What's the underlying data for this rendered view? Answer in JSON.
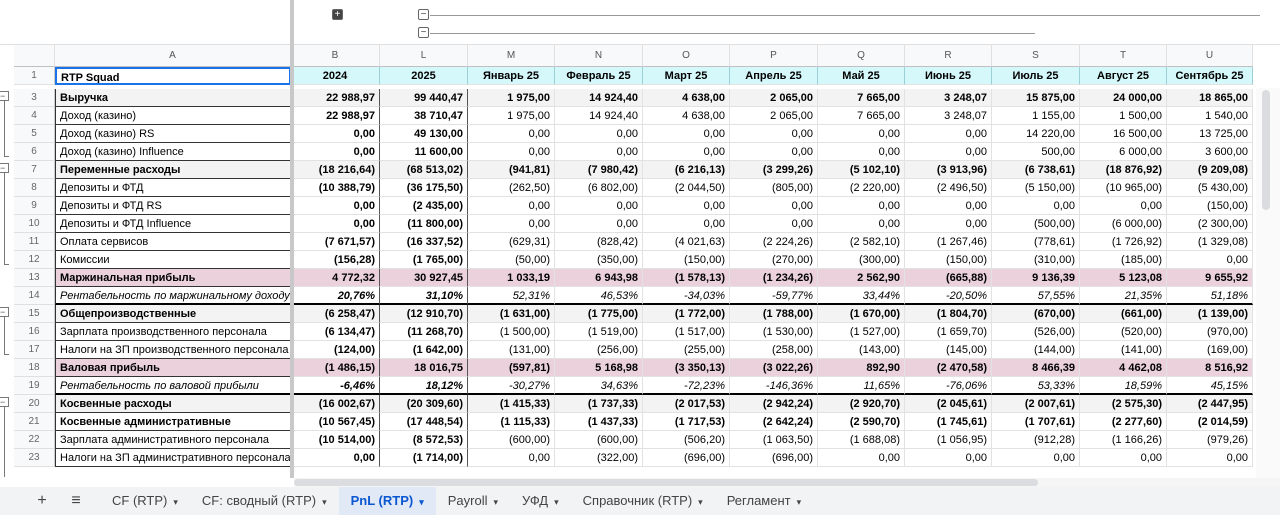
{
  "columns": [
    "A",
    "B",
    "L",
    "M",
    "N",
    "O",
    "P",
    "Q",
    "R",
    "S",
    "T",
    "U"
  ],
  "header_row": {
    "n": "1",
    "label": "RTP Squad",
    "values": [
      "2024",
      "2025",
      "Январь 25",
      "Февраль 25",
      "Март 25",
      "Апрель 25",
      "Май 25",
      "Июнь 25",
      "Июль 25",
      "Август 25",
      "Сентябрь 25"
    ]
  },
  "rows": [
    {
      "n": "3",
      "label": "Выручка",
      "style": "bold grey",
      "values": [
        "22 988,97",
        "99 440,47",
        "1 975,00",
        "14 924,40",
        "4 638,00",
        "2 065,00",
        "7 665,00",
        "3 248,07",
        "15 875,00",
        "24 000,00",
        "18 865,00"
      ]
    },
    {
      "n": "4",
      "label": "Доход (казино)",
      "style": "",
      "values": [
        "22 988,97",
        "38 710,47",
        "1 975,00",
        "14 924,40",
        "4 638,00",
        "2 065,00",
        "7 665,00",
        "3 248,07",
        "1 155,00",
        "1 500,00",
        "1 540,00"
      ]
    },
    {
      "n": "5",
      "label": "Доход (казино) RS",
      "style": "",
      "values": [
        "0,00",
        "49 130,00",
        "0,00",
        "0,00",
        "0,00",
        "0,00",
        "0,00",
        "0,00",
        "14 220,00",
        "16 500,00",
        "13 725,00"
      ]
    },
    {
      "n": "6",
      "label": "Доход (казино) Influence",
      "style": "",
      "values": [
        "0,00",
        "11 600,00",
        "0,00",
        "0,00",
        "0,00",
        "0,00",
        "0,00",
        "0,00",
        "500,00",
        "6 000,00",
        "3 600,00"
      ]
    },
    {
      "n": "7",
      "label": "Переменные расходы",
      "style": "bold grey",
      "values": [
        "(18 216,64)",
        "(68 513,02)",
        "(941,81)",
        "(7 980,42)",
        "(6 216,13)",
        "(3 299,26)",
        "(5 102,10)",
        "(3 913,96)",
        "(6 738,61)",
        "(18 876,92)",
        "(9 209,08)"
      ]
    },
    {
      "n": "8",
      "label": "Депозиты и ФТД",
      "style": "",
      "values": [
        "(10 388,79)",
        "(36 175,50)",
        "(262,50)",
        "(6 802,00)",
        "(2 044,50)",
        "(805,00)",
        "(2 220,00)",
        "(2 496,50)",
        "(5 150,00)",
        "(10 965,00)",
        "(5 430,00)"
      ]
    },
    {
      "n": "9",
      "label": "Депозиты и ФТД RS",
      "style": "",
      "values": [
        "0,00",
        "(2 435,00)",
        "0,00",
        "0,00",
        "0,00",
        "0,00",
        "0,00",
        "0,00",
        "0,00",
        "0,00",
        "(150,00)"
      ]
    },
    {
      "n": "10",
      "label": "Депозиты и ФТД Influence",
      "style": "",
      "values": [
        "0,00",
        "(11 800,00)",
        "0,00",
        "0,00",
        "0,00",
        "0,00",
        "0,00",
        "0,00",
        "(500,00)",
        "(6 000,00)",
        "(2 300,00)"
      ]
    },
    {
      "n": "11",
      "label": "Оплата сервисов",
      "style": "",
      "values": [
        "(7 671,57)",
        "(16 337,52)",
        "(629,31)",
        "(828,42)",
        "(4 021,63)",
        "(2 224,26)",
        "(2 582,10)",
        "(1 267,46)",
        "(778,61)",
        "(1 726,92)",
        "(1 329,08)"
      ]
    },
    {
      "n": "12",
      "label": "Комиссии",
      "style": "",
      "values": [
        "(156,28)",
        "(1 765,00)",
        "(50,00)",
        "(350,00)",
        "(150,00)",
        "(270,00)",
        "(300,00)",
        "(150,00)",
        "(310,00)",
        "(185,00)",
        "0,00"
      ]
    },
    {
      "n": "13",
      "label": "Маржинальная прибыль",
      "style": "bold pink",
      "values": [
        "4 772,32",
        "30 927,45",
        "1 033,19",
        "6 943,98",
        "(1 578,13)",
        "(1 234,26)",
        "2 562,90",
        "(665,88)",
        "9 136,39",
        "5 123,08",
        "9 655,92"
      ]
    },
    {
      "n": "14",
      "label": "Рентабельность по маржинальному доходу",
      "style": "ital thickrow",
      "values": [
        "20,76%",
        "31,10%",
        "52,31%",
        "46,53%",
        "-34,03%",
        "-59,77%",
        "33,44%",
        "-20,50%",
        "57,55%",
        "21,35%",
        "51,18%"
      ]
    },
    {
      "n": "15",
      "label": "Общепроизводственные",
      "style": "bold grey",
      "values": [
        "(6 258,47)",
        "(12 910,70)",
        "(1 631,00)",
        "(1 775,00)",
        "(1 772,00)",
        "(1 788,00)",
        "(1 670,00)",
        "(1 804,70)",
        "(670,00)",
        "(661,00)",
        "(1 139,00)"
      ]
    },
    {
      "n": "16",
      "label": "Зарплата производственного персонала",
      "style": "",
      "values": [
        "(6 134,47)",
        "(11 268,70)",
        "(1 500,00)",
        "(1 519,00)",
        "(1 517,00)",
        "(1 530,00)",
        "(1 527,00)",
        "(1 659,70)",
        "(526,00)",
        "(520,00)",
        "(970,00)"
      ]
    },
    {
      "n": "17",
      "label": "Налоги на ЗП производственного персонала",
      "style": "",
      "values": [
        "(124,00)",
        "(1 642,00)",
        "(131,00)",
        "(256,00)",
        "(255,00)",
        "(258,00)",
        "(143,00)",
        "(145,00)",
        "(144,00)",
        "(141,00)",
        "(169,00)"
      ]
    },
    {
      "n": "18",
      "label": "Валовая прибыль",
      "style": "bold pink",
      "values": [
        "(1 486,15)",
        "18 016,75",
        "(597,81)",
        "5 168,98",
        "(3 350,13)",
        "(3 022,26)",
        "892,90",
        "(2 470,58)",
        "8 466,39",
        "4 462,08",
        "8 516,92"
      ]
    },
    {
      "n": "19",
      "label": "Рентабельность по валовой прибыли",
      "style": "ital thickrow",
      "values": [
        "-6,46%",
        "18,12%",
        "-30,27%",
        "34,63%",
        "-72,23%",
        "-146,36%",
        "11,65%",
        "-76,06%",
        "53,33%",
        "18,59%",
        "45,15%"
      ]
    },
    {
      "n": "20",
      "label": "Косвенные расходы",
      "style": "bold grey",
      "values": [
        "(16 002,67)",
        "(20 309,60)",
        "(1 415,33)",
        "(1 737,33)",
        "(2 017,53)",
        "(2 942,24)",
        "(2 920,70)",
        "(2 045,61)",
        "(2 007,61)",
        "(2 575,30)",
        "(2 447,95)"
      ]
    },
    {
      "n": "21",
      "label": "Косвенные административные",
      "style": "bold",
      "values": [
        "(10 567,45)",
        "(17 448,54)",
        "(1 115,33)",
        "(1 437,33)",
        "(1 717,53)",
        "(2 642,24)",
        "(2 590,70)",
        "(1 745,61)",
        "(1 707,61)",
        "(2 277,60)",
        "(2 014,59)"
      ]
    },
    {
      "n": "22",
      "label": "Зарплата административного персонала",
      "style": "",
      "values": [
        "(10 514,00)",
        "(8 572,53)",
        "(600,00)",
        "(600,00)",
        "(506,20)",
        "(1 063,50)",
        "(1 688,08)",
        "(1 056,95)",
        "(912,28)",
        "(1 166,26)",
        "(979,26)"
      ]
    },
    {
      "n": "23",
      "label": "Налоги на ЗП административного персонала",
      "style": "",
      "values": [
        "0,00",
        "(1 714,00)",
        "0,00",
        "(322,00)",
        "(696,00)",
        "(696,00)",
        "0,00",
        "0,00",
        "0,00",
        "0,00",
        "0,00"
      ]
    }
  ],
  "tabs": [
    {
      "label": "CF (RTP)"
    },
    {
      "label": "CF: сводный (RTP)"
    },
    {
      "label": "PnL (RTP)",
      "active": true
    },
    {
      "label": "Payroll"
    },
    {
      "label": "УФД"
    },
    {
      "label": "Справочник (RTP)"
    },
    {
      "label": "Регламент"
    }
  ],
  "icons": {
    "add_sheet": "+",
    "all_sheets": "≡",
    "caret": "▾"
  }
}
